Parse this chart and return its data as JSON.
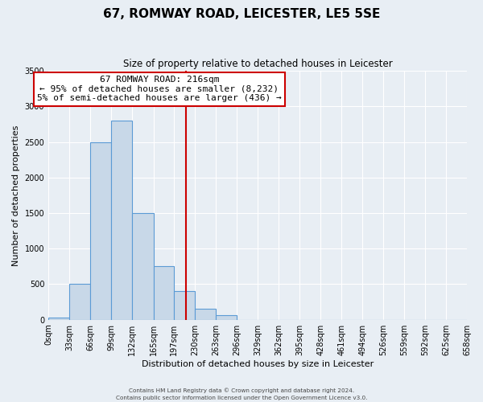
{
  "title": "67, ROMWAY ROAD, LEICESTER, LE5 5SE",
  "subtitle": "Size of property relative to detached houses in Leicester",
  "xlabel": "Distribution of detached houses by size in Leicester",
  "ylabel": "Number of detached properties",
  "bar_color": "#c8d8e8",
  "bar_edge_color": "#5b9bd5",
  "bin_edges": [
    0,
    33,
    66,
    99,
    132,
    165,
    197,
    230,
    263,
    296,
    329,
    362,
    395,
    428,
    461,
    494,
    526,
    559,
    592,
    625,
    658
  ],
  "bin_labels": [
    "0sqm",
    "33sqm",
    "66sqm",
    "99sqm",
    "132sqm",
    "165sqm",
    "197sqm",
    "230sqm",
    "263sqm",
    "296sqm",
    "329sqm",
    "362sqm",
    "395sqm",
    "428sqm",
    "461sqm",
    "494sqm",
    "526sqm",
    "559sqm",
    "592sqm",
    "625sqm",
    "658sqm"
  ],
  "bar_heights": [
    25,
    500,
    2500,
    2800,
    1500,
    750,
    400,
    150,
    60,
    0,
    0,
    0,
    0,
    0,
    0,
    0,
    0,
    0,
    0,
    0
  ],
  "ylim": [
    0,
    3500
  ],
  "yticks": [
    0,
    500,
    1000,
    1500,
    2000,
    2500,
    3000,
    3500
  ],
  "property_size": 216,
  "vline_color": "#cc0000",
  "annotation_line1": "67 ROMWAY ROAD: 216sqm",
  "annotation_line2": "← 95% of detached houses are smaller (8,232)",
  "annotation_line3": "5% of semi-detached houses are larger (436) →",
  "annotation_box_color": "#ffffff",
  "annotation_box_edge_color": "#cc0000",
  "footnote1": "Contains HM Land Registry data © Crown copyright and database right 2024.",
  "footnote2": "Contains public sector information licensed under the Open Government Licence v3.0.",
  "background_color": "#e8eef4",
  "plot_background_color": "#e8eef4",
  "grid_color": "#ffffff",
  "title_fontsize": 11,
  "subtitle_fontsize": 8.5,
  "xlabel_fontsize": 8,
  "ylabel_fontsize": 8,
  "tick_fontsize": 7,
  "annot_fontsize": 8
}
